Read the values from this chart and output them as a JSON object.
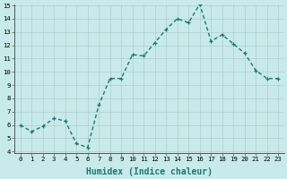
{
  "x": [
    0,
    1,
    2,
    3,
    4,
    5,
    6,
    7,
    8,
    9,
    10,
    11,
    12,
    13,
    14,
    15,
    16,
    17,
    18,
    19,
    20,
    21,
    22,
    23
  ],
  "y": [
    6.0,
    5.5,
    5.9,
    6.5,
    6.3,
    4.6,
    4.3,
    7.5,
    9.5,
    9.5,
    11.3,
    11.2,
    12.2,
    13.2,
    14.0,
    13.7,
    15.1,
    12.3,
    12.8,
    12.1,
    11.4,
    10.1,
    9.5,
    9.5
  ],
  "line_color": "#1a7a6e",
  "bg_color": "#c8eaea",
  "grid_color": "#b0cecc",
  "xlabel": "Humidex (Indice chaleur)",
  "ylim": [
    4,
    15
  ],
  "xlim": [
    -0.5,
    23.5
  ],
  "yticks": [
    4,
    5,
    6,
    7,
    8,
    9,
    10,
    11,
    12,
    13,
    14,
    15
  ],
  "xticks": [
    0,
    1,
    2,
    3,
    4,
    5,
    6,
    7,
    8,
    9,
    10,
    11,
    12,
    13,
    14,
    15,
    16,
    17,
    18,
    19,
    20,
    21,
    22,
    23
  ],
  "tick_label_fontsize": 5.2,
  "xlabel_fontsize": 7.0,
  "marker": "+",
  "marker_size": 3.5,
  "line_width": 1.0
}
